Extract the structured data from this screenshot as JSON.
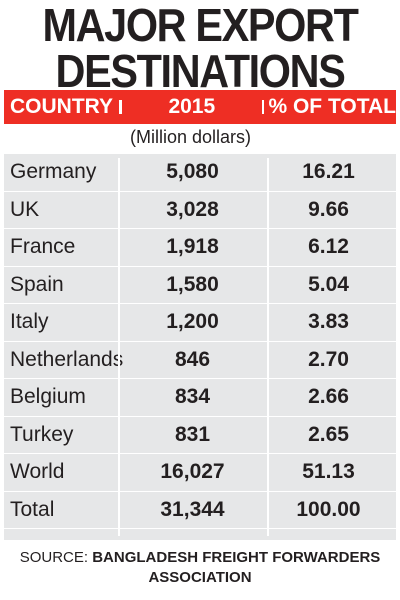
{
  "title_line1": "MAJOR EXPORT",
  "title_line2": "DESTINATIONS",
  "columns": [
    "COUNTRY",
    "2015",
    "% OF TOTAL"
  ],
  "unit_note": "(Million dollars)",
  "source_label": "SOURCE:",
  "source_text": "BANGLADESH FREIGHT FORWARDERS ASSOCIATION",
  "colors": {
    "header_bg": "#ee2e24",
    "table_bg": "#e6e7e8",
    "text": "#231f20"
  },
  "chart_data": {
    "type": "table",
    "title": "MAJOR EXPORT DESTINATIONS",
    "columns": [
      "COUNTRY",
      "2015",
      "% OF TOTAL"
    ],
    "rows": [
      {
        "country": "Germany",
        "value": "5,080",
        "percent": "16.21"
      },
      {
        "country": "UK",
        "value": "3,028",
        "percent": "9.66"
      },
      {
        "country": "France",
        "value": "1,918",
        "percent": "6.12"
      },
      {
        "country": "Spain",
        "value": "1,580",
        "percent": "5.04"
      },
      {
        "country": "Italy",
        "value": "1,200",
        "percent": "3.83"
      },
      {
        "country": "Netherlands",
        "value": "846",
        "percent": "2.70"
      },
      {
        "country": "Belgium",
        "value": "834",
        "percent": "2.66"
      },
      {
        "country": "Turkey",
        "value": "831",
        "percent": "2.65"
      },
      {
        "country": "World",
        "value": "16,027",
        "percent": "51.13"
      },
      {
        "country": "Total",
        "value": "31,344",
        "percent": "100.00"
      }
    ]
  }
}
